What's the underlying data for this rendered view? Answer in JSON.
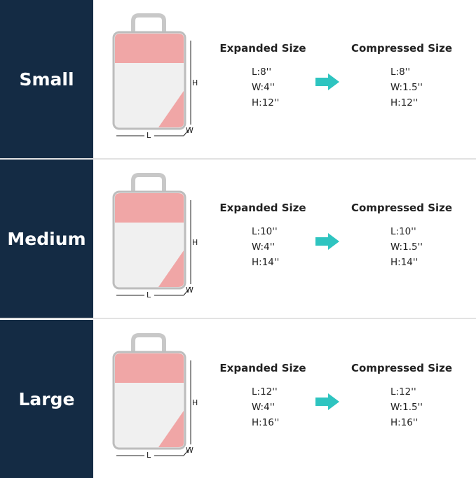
{
  "accent_color": "#2ec4c0",
  "sidebar_color": "#142b44",
  "arrow_icon": "arrow-right-icon",
  "bag_dimension_labels": {
    "length": "L",
    "width": "W",
    "height": "H"
  },
  "rows": [
    {
      "size": "Small",
      "expanded": {
        "title": "Expanded Size",
        "l": "L:8''",
        "w": "W:4''",
        "h": "H:12''"
      },
      "compressed": {
        "title": "Compressed Size",
        "l": "L:8''",
        "w": "W:1.5''",
        "h": "H:12''"
      }
    },
    {
      "size": "Medium",
      "expanded": {
        "title": "Expanded Size",
        "l": "L:10''",
        "w": "W:4''",
        "h": "H:14''"
      },
      "compressed": {
        "title": "Compressed Size",
        "l": "L:10''",
        "w": "W:1.5''",
        "h": "H:14''"
      }
    },
    {
      "size": "Large",
      "expanded": {
        "title": "Expanded Size",
        "l": "L:12''",
        "w": "W:4''",
        "h": "H:16''"
      },
      "compressed": {
        "title": "Compressed Size",
        "l": "L:12''",
        "w": "W:1.5''",
        "h": "H:16''"
      }
    }
  ]
}
